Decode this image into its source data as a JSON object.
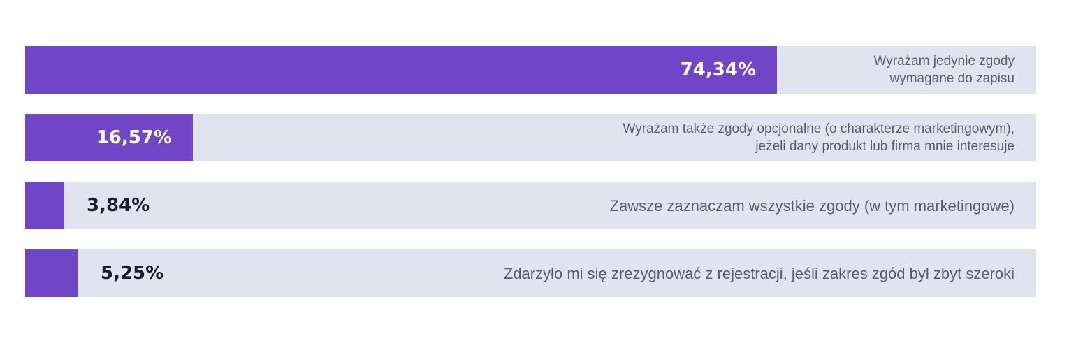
{
  "chart_data": {
    "type": "bar",
    "orientation": "horizontal",
    "xlim": [
      0,
      100
    ],
    "colors": {
      "bar": "#7146c6",
      "track": "#e1e4ef",
      "label_text": "#5a5c70",
      "value_outside": "#1b1b2a",
      "value_inside": "#ffffff"
    },
    "bars": [
      {
        "value": 74.34,
        "value_label": "74,34%",
        "label_lines": [
          "Wyrażam jedynie zgody",
          "wymagane do zapisu"
        ]
      },
      {
        "value": 16.57,
        "value_label": "16,57%",
        "label_lines": [
          "Wyrażam także zgody opcjonalne (o charakterze marketingowym),",
          "jeżeli dany produkt lub firma mnie interesuje"
        ]
      },
      {
        "value": 3.84,
        "value_label": "3,84%",
        "label_lines": [
          "Zawsze zaznaczam wszystkie zgody (w tym marketingowe)"
        ]
      },
      {
        "value": 5.25,
        "value_label": "5,25%",
        "label_lines": [
          "Zdarzyło mi się zrezygnować z rejestracji, jeśli zakres zgód był zbyt szeroki"
        ]
      }
    ]
  }
}
